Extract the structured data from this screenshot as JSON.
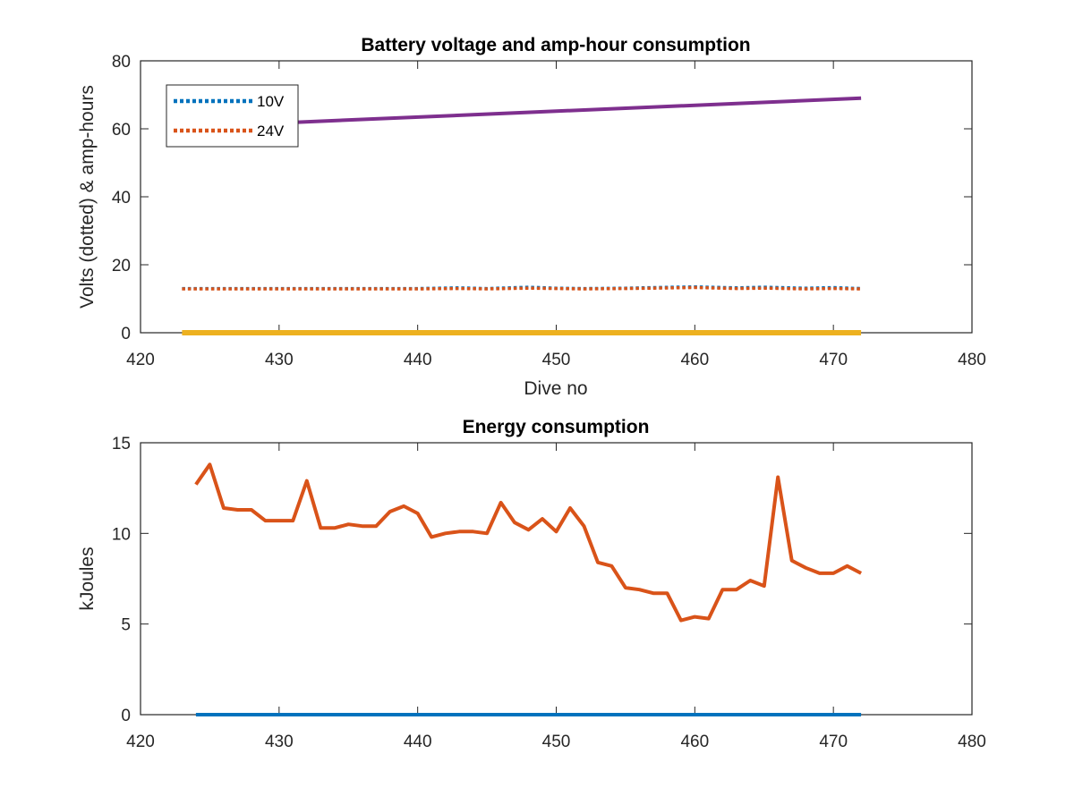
{
  "chart_data": [
    {
      "type": "line",
      "title": "Battery voltage and amp-hour consumption",
      "xlabel": "Dive no",
      "ylabel": "Volts (dotted) & amp-hours",
      "xlim": [
        420,
        480
      ],
      "ylim": [
        0,
        80
      ],
      "xticks": [
        420,
        430,
        440,
        450,
        460,
        470,
        480
      ],
      "yticks": [
        0,
        20,
        40,
        60,
        80
      ],
      "grid": false,
      "legend_position": "top-left",
      "legend": [
        "10V",
        "24V"
      ],
      "series": [
        {
          "name": "10V",
          "style": "dotted",
          "color": "#0072BD",
          "x": [
            423,
            430,
            440,
            443,
            445,
            448,
            450,
            452,
            455,
            457,
            460,
            463,
            465,
            468,
            470,
            472
          ],
          "y": [
            13,
            13,
            13,
            13.2,
            13,
            13.4,
            13.1,
            13,
            13.1,
            13.3,
            13.5,
            13.2,
            13.4,
            13.1,
            13.3,
            13
          ]
        },
        {
          "name": "24V",
          "style": "dotted",
          "color": "#D95319",
          "x": [
            423,
            430,
            440,
            443,
            445,
            448,
            450,
            452,
            455,
            457,
            460,
            463,
            465,
            468,
            470,
            472
          ],
          "y": [
            12.9,
            12.9,
            12.9,
            13,
            12.9,
            13.1,
            13,
            12.9,
            13,
            13.1,
            13.3,
            13,
            13.1,
            12.9,
            13,
            12.9
          ]
        },
        {
          "style": "solid",
          "color": "#7E2F8E",
          "x": [
            423,
            472
          ],
          "y": [
            60.5,
            69
          ]
        },
        {
          "style": "solid",
          "color": "#EDB120",
          "x": [
            423,
            472
          ],
          "y": [
            0,
            0
          ]
        }
      ]
    },
    {
      "type": "line",
      "title": "Energy consumption",
      "xlabel": "",
      "ylabel": "kJoules",
      "xlim": [
        420,
        480
      ],
      "ylim": [
        0,
        15
      ],
      "xticks": [
        420,
        430,
        440,
        450,
        460,
        470,
        480
      ],
      "yticks": [
        0,
        5,
        10,
        15
      ],
      "grid": false,
      "series": [
        {
          "style": "solid",
          "color": "#D95319",
          "x": [
            424,
            425,
            426,
            427,
            428,
            429,
            430,
            431,
            432,
            433,
            434,
            435,
            436,
            437,
            438,
            439,
            440,
            441,
            442,
            443,
            444,
            445,
            446,
            447,
            448,
            449,
            450,
            451,
            452,
            453,
            454,
            455,
            456,
            457,
            458,
            459,
            460,
            461,
            462,
            463,
            464,
            465,
            466,
            467,
            468,
            469,
            470,
            471,
            472
          ],
          "y": [
            12.7,
            13.8,
            11.4,
            11.3,
            11.3,
            10.7,
            10.7,
            10.7,
            12.9,
            10.3,
            10.3,
            10.5,
            10.4,
            10.4,
            11.2,
            11.5,
            11.1,
            9.8,
            10,
            10.1,
            10.1,
            10,
            11.7,
            10.6,
            10.2,
            10.8,
            10.1,
            11.4,
            10.4,
            8.4,
            8.2,
            7,
            6.9,
            6.7,
            6.7,
            5.2,
            5.4,
            5.3,
            6.9,
            6.9,
            7.4,
            7.1,
            13.1,
            8.5,
            8.1,
            7.8,
            7.8,
            8.2,
            7.8
          ]
        },
        {
          "style": "solid",
          "color": "#0072BD",
          "x": [
            424,
            472
          ],
          "y": [
            0,
            0
          ]
        }
      ]
    }
  ]
}
